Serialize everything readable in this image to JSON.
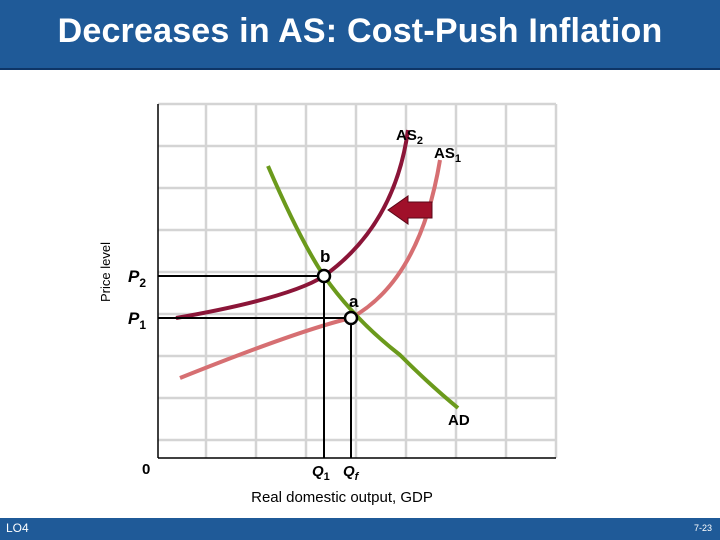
{
  "slide": {
    "title": "Decreases in AS: Cost-Push Inflation",
    "footer_left": "LO4",
    "footer_right": "7-23"
  },
  "diagram": {
    "y_axis_label": "Price level",
    "x_axis_label": "Real domestic output, GDP",
    "origin_label": "0",
    "price_labels": {
      "p2": "P",
      "p2_sub": "2",
      "p1": "P",
      "p1_sub": "1"
    },
    "quantity_labels": {
      "q1": "Q",
      "q1_sub": "1",
      "qf": "Q",
      "qf_sub": "f"
    },
    "curves": {
      "as2": {
        "name": "AS",
        "sub": "2",
        "color": "#8b1538"
      },
      "as1": {
        "name": "AS",
        "sub": "1",
        "color": "#d66f72"
      },
      "ad": {
        "name": "AD",
        "color": "#6b9a1c"
      }
    },
    "points": {
      "b": "b",
      "a": "a"
    },
    "shift_arrow_color": "#a0102a"
  }
}
